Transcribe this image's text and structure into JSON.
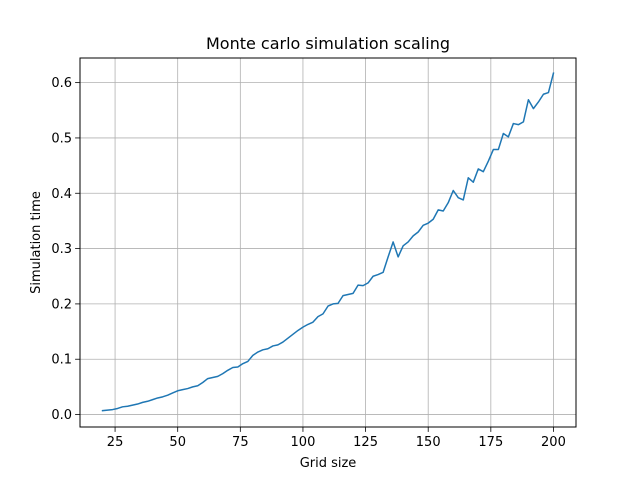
{
  "chart_data": {
    "type": "line",
    "title": "Monte carlo simulation scaling",
    "xlabel": "Grid size",
    "ylabel": "Simulation time",
    "xlim": [
      11,
      209
    ],
    "ylim": [
      -0.0225,
      0.6445
    ],
    "xticks": [
      25,
      50,
      75,
      100,
      125,
      150,
      175,
      200
    ],
    "yticks": [
      0.0,
      0.1,
      0.2,
      0.3,
      0.4,
      0.5,
      0.6
    ],
    "ytick_labels": [
      "0.0",
      "0.1",
      "0.2",
      "0.3",
      "0.4",
      "0.5",
      "0.6"
    ],
    "grid": true,
    "series": [
      {
        "color": "#1f77b4",
        "x": [
          20,
          22,
          24,
          26,
          28,
          30,
          32,
          34,
          36,
          38,
          40,
          42,
          44,
          46,
          48,
          50,
          52,
          54,
          56,
          58,
          60,
          62,
          64,
          66,
          68,
          70,
          72,
          74,
          76,
          78,
          80,
          82,
          84,
          86,
          88,
          90,
          92,
          94,
          96,
          98,
          100,
          102,
          104,
          106,
          108,
          110,
          112,
          114,
          116,
          118,
          120,
          122,
          124,
          126,
          128,
          130,
          132,
          134,
          136,
          138,
          140,
          142,
          144,
          146,
          148,
          150,
          152,
          154,
          156,
          158,
          160,
          162,
          164,
          166,
          168,
          170,
          172,
          174,
          176,
          178,
          180,
          182,
          184,
          186,
          188,
          190,
          192,
          194,
          196,
          198,
          200
        ],
        "y": [
          0.007,
          0.008,
          0.009,
          0.011,
          0.014,
          0.015,
          0.017,
          0.019,
          0.022,
          0.024,
          0.027,
          0.03,
          0.032,
          0.035,
          0.039,
          0.043,
          0.045,
          0.047,
          0.05,
          0.052,
          0.058,
          0.065,
          0.067,
          0.069,
          0.074,
          0.08,
          0.085,
          0.086,
          0.092,
          0.096,
          0.107,
          0.113,
          0.117,
          0.119,
          0.124,
          0.126,
          0.131,
          0.138,
          0.145,
          0.152,
          0.158,
          0.163,
          0.167,
          0.177,
          0.182,
          0.196,
          0.2,
          0.201,
          0.215,
          0.217,
          0.219,
          0.234,
          0.233,
          0.238,
          0.25,
          0.253,
          0.257,
          0.285,
          0.312,
          0.285,
          0.305,
          0.312,
          0.323,
          0.33,
          0.342,
          0.346,
          0.353,
          0.37,
          0.368,
          0.383,
          0.405,
          0.392,
          0.388,
          0.428,
          0.42,
          0.444,
          0.439,
          0.458,
          0.479,
          0.479,
          0.508,
          0.502,
          0.526,
          0.524,
          0.529,
          0.569,
          0.553,
          0.565,
          0.579,
          0.582,
          0.617
        ]
      }
    ]
  }
}
